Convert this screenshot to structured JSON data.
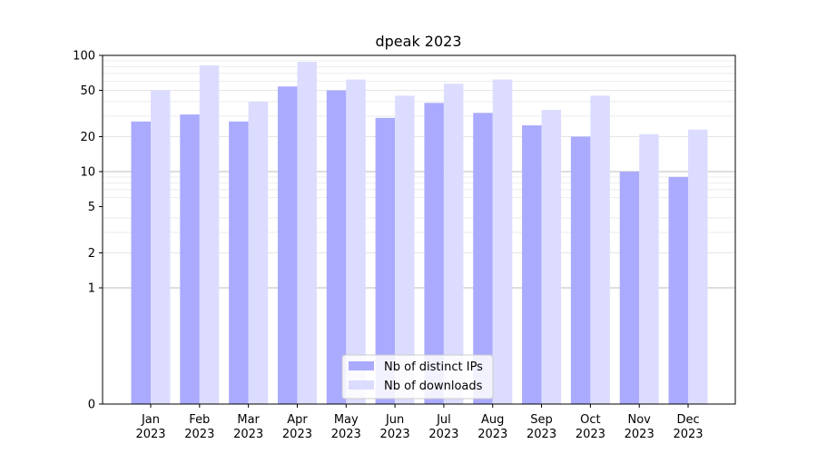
{
  "chart_data": {
    "type": "bar",
    "title": "dpeak 2023",
    "xlabel": "",
    "ylabel": "",
    "yscale": "symlog",
    "ylim": [
      0,
      100
    ],
    "grid": "y",
    "legend_placement": "bottom-center",
    "categories": [
      [
        "Jan",
        "2023"
      ],
      [
        "Feb",
        "2023"
      ],
      [
        "Mar",
        "2023"
      ],
      [
        "Apr",
        "2023"
      ],
      [
        "May",
        "2023"
      ],
      [
        "Jun",
        "2023"
      ],
      [
        "Jul",
        "2023"
      ],
      [
        "Aug",
        "2023"
      ],
      [
        "Sep",
        "2023"
      ],
      [
        "Oct",
        "2023"
      ],
      [
        "Nov",
        "2023"
      ],
      [
        "Dec",
        "2023"
      ]
    ],
    "yticks": [
      0,
      1,
      2,
      5,
      10,
      20,
      50,
      100
    ],
    "series": [
      {
        "name": "Nb of distinct IPs",
        "color": "#aaaaff",
        "values": [
          27,
          31,
          27,
          54,
          50,
          29,
          39,
          32,
          25,
          20,
          10,
          9
        ]
      },
      {
        "name": "Nb of downloads",
        "color": "#dcdcff",
        "values": [
          50,
          82,
          40,
          88,
          62,
          45,
          57,
          62,
          34,
          45,
          21,
          23
        ]
      }
    ]
  }
}
